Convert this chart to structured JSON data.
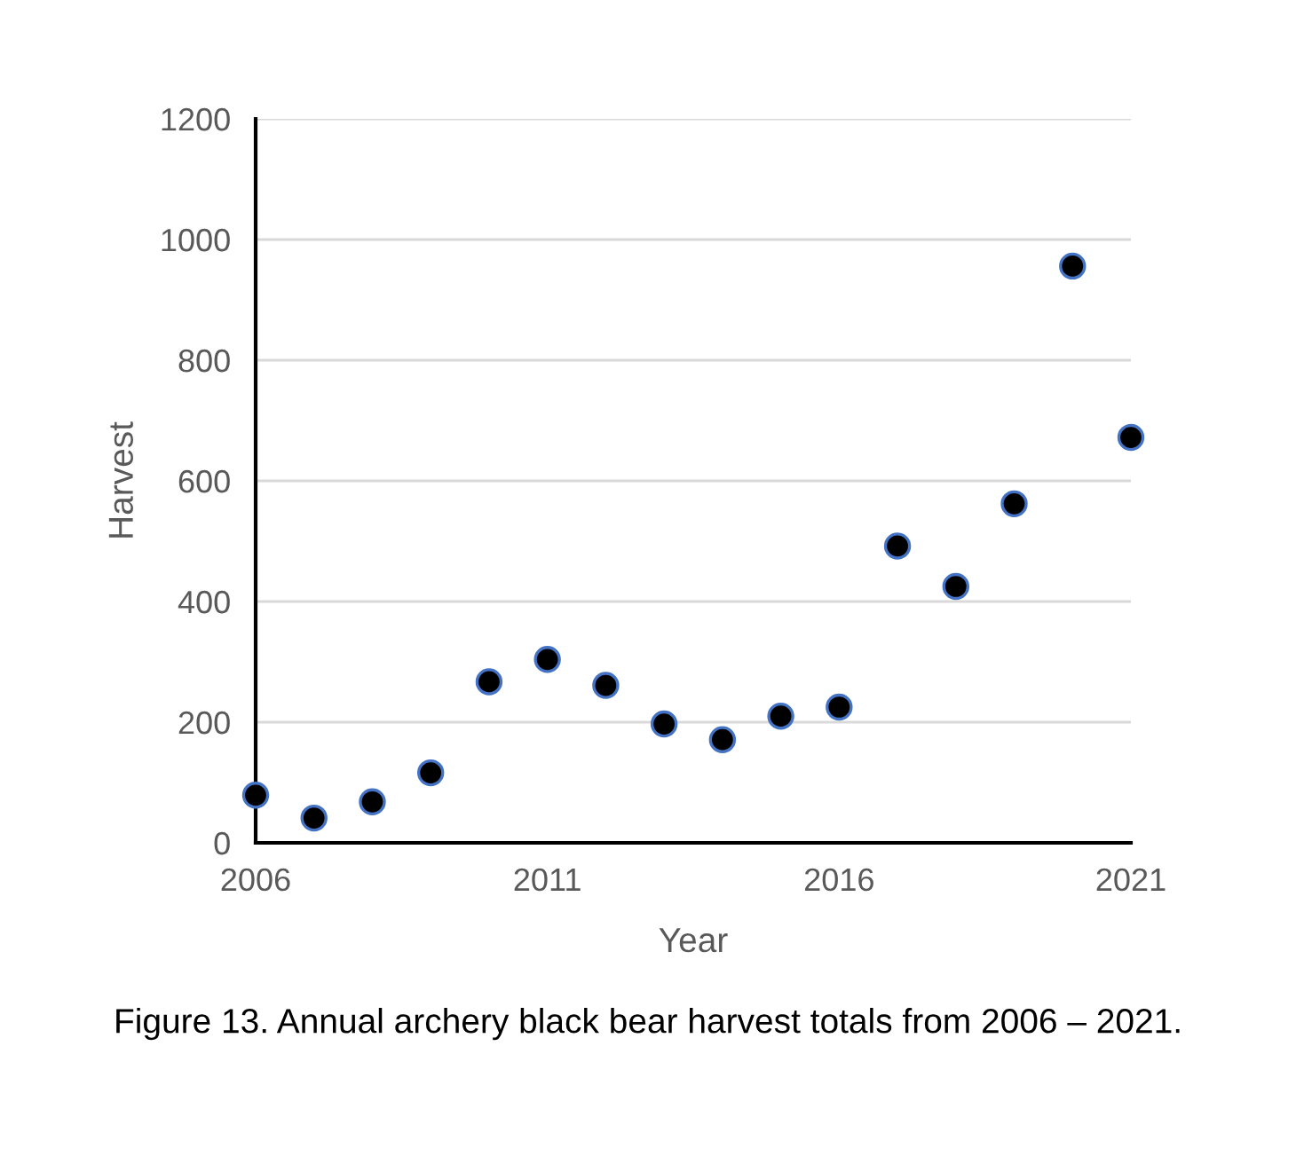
{
  "chart_data": {
    "type": "scatter",
    "xlabel": "Year",
    "ylabel": "Harvest",
    "x": [
      2006,
      2007,
      2008,
      2009,
      2010,
      2011,
      2012,
      2013,
      2014,
      2015,
      2016,
      2017,
      2018,
      2019,
      2020,
      2021
    ],
    "series": [
      {
        "color": "#000000",
        "values": [
          79,
          41,
          68,
          116,
          267,
          304,
          261,
          197,
          171,
          210,
          225,
          492,
          425,
          562,
          956,
          672
        ]
      }
    ],
    "xlim": [
      2006,
      2021
    ],
    "xticks": [
      2006,
      2011,
      2016,
      2021
    ],
    "ylim": [
      0,
      1200
    ],
    "yticks": [
      0,
      200,
      400,
      600,
      800,
      1000,
      1200
    ],
    "grid": "y",
    "marker": "circle",
    "legend": false,
    "annotations": [
      "Figure 13. Annual archery black bear harvest totals from 2006 – 2021."
    ]
  }
}
